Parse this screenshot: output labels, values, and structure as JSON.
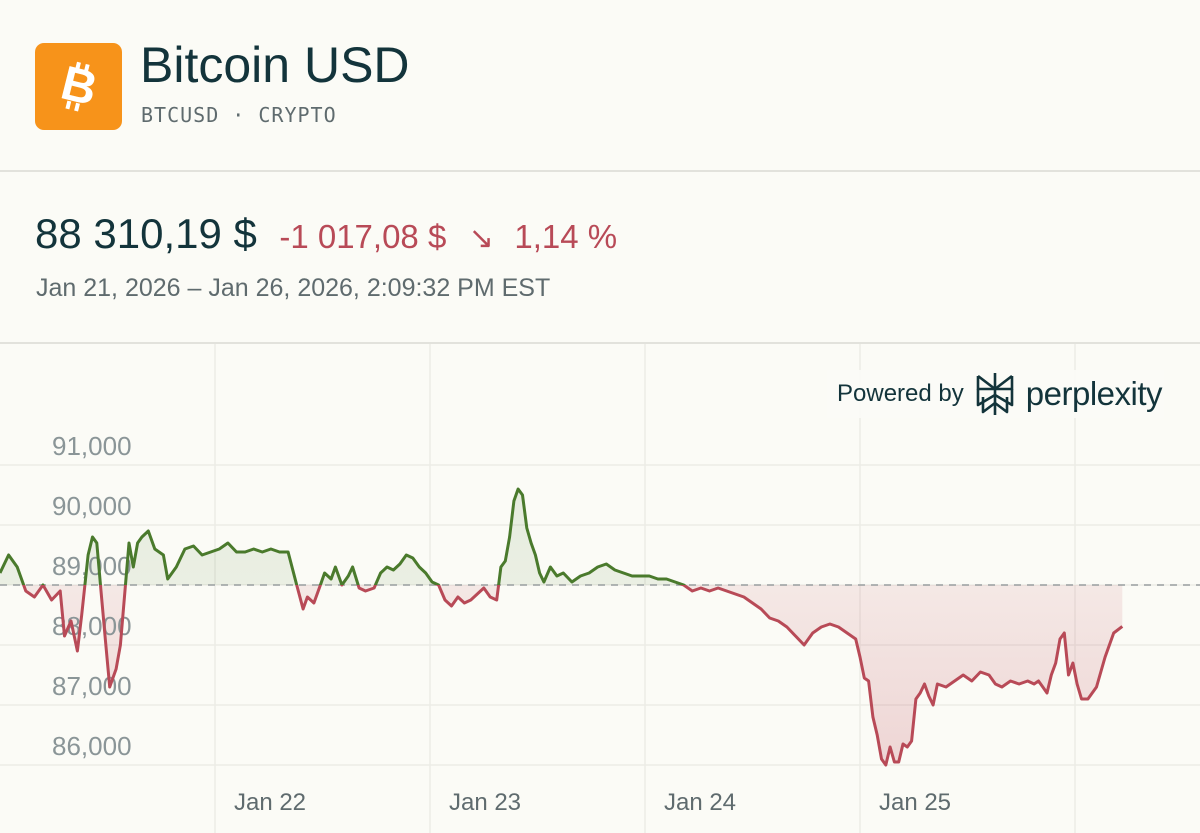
{
  "header": {
    "title": "Bitcoin USD",
    "subtitle": "BTCUSD · CRYPTO",
    "logo_icon": "bitcoin-icon",
    "logo_color": "#f7931a"
  },
  "quote": {
    "price": "88 310,19 $",
    "change": "-1 017,08 $",
    "change_percent": "1,14 %",
    "direction_icon": "arrow-down-right-icon",
    "range": "Jan 21, 2026 – Jan 26, 2026, 2:09:32 PM EST",
    "negative_color": "#b84a57",
    "positive_color": "#4a7a2c"
  },
  "attribution": {
    "label": "Powered by",
    "brand": "perplexity",
    "icon": "perplexity-logo-icon"
  },
  "chart_data": {
    "type": "line",
    "title": "Bitcoin USD",
    "ylabel": "",
    "xlabel": "",
    "y_ticks": [
      86000,
      87000,
      88000,
      89000,
      90000,
      91000
    ],
    "y_tick_labels": [
      "86,000",
      "87,000",
      "88,000",
      "89,000",
      "90,000",
      "91,000"
    ],
    "x_ticks": [
      1,
      2,
      3,
      4
    ],
    "x_tick_labels": [
      "Jan 22",
      "Jan 23",
      "Jan 24",
      "Jan 25"
    ],
    "ylim": [
      85300,
      91400
    ],
    "xlim": [
      0,
      5.45
    ],
    "reference": 89000,
    "grid": true,
    "series": [
      {
        "name": "BTCUSD",
        "points": [
          [
            0.0,
            89200
          ],
          [
            0.04,
            89500
          ],
          [
            0.08,
            89300
          ],
          [
            0.12,
            88900
          ],
          [
            0.16,
            88800
          ],
          [
            0.2,
            89000
          ],
          [
            0.24,
            88750
          ],
          [
            0.28,
            88900
          ],
          [
            0.3,
            88150
          ],
          [
            0.33,
            88400
          ],
          [
            0.36,
            87900
          ],
          [
            0.38,
            88500
          ],
          [
            0.41,
            89500
          ],
          [
            0.43,
            89800
          ],
          [
            0.45,
            89700
          ],
          [
            0.47,
            88900
          ],
          [
            0.49,
            88100
          ],
          [
            0.51,
            87300
          ],
          [
            0.54,
            87600
          ],
          [
            0.56,
            88000
          ],
          [
            0.6,
            89700
          ],
          [
            0.62,
            89300
          ],
          [
            0.64,
            89700
          ],
          [
            0.66,
            89800
          ],
          [
            0.69,
            89900
          ],
          [
            0.72,
            89600
          ],
          [
            0.76,
            89500
          ],
          [
            0.78,
            89100
          ],
          [
            0.82,
            89300
          ],
          [
            0.86,
            89600
          ],
          [
            0.9,
            89650
          ],
          [
            0.94,
            89500
          ],
          [
            0.98,
            89550
          ],
          [
            1.02,
            89600
          ],
          [
            1.06,
            89700
          ],
          [
            1.1,
            89550
          ],
          [
            1.14,
            89550
          ],
          [
            1.18,
            89600
          ],
          [
            1.22,
            89550
          ],
          [
            1.26,
            89600
          ],
          [
            1.3,
            89550
          ],
          [
            1.34,
            89550
          ],
          [
            1.38,
            89000
          ],
          [
            1.41,
            88600
          ],
          [
            1.43,
            88800
          ],
          [
            1.46,
            88700
          ],
          [
            1.49,
            89000
          ],
          [
            1.51,
            89200
          ],
          [
            1.54,
            89100
          ],
          [
            1.56,
            89300
          ],
          [
            1.59,
            89000
          ],
          [
            1.62,
            89150
          ],
          [
            1.64,
            89300
          ],
          [
            1.67,
            88950
          ],
          [
            1.7,
            88900
          ],
          [
            1.74,
            88950
          ],
          [
            1.77,
            89200
          ],
          [
            1.8,
            89300
          ],
          [
            1.83,
            89250
          ],
          [
            1.86,
            89350
          ],
          [
            1.89,
            89500
          ],
          [
            1.92,
            89450
          ],
          [
            1.95,
            89300
          ],
          [
            1.98,
            89200
          ],
          [
            2.01,
            89050
          ],
          [
            2.04,
            89000
          ],
          [
            2.07,
            88750
          ],
          [
            2.1,
            88650
          ],
          [
            2.13,
            88800
          ],
          [
            2.16,
            88700
          ],
          [
            2.19,
            88750
          ],
          [
            2.22,
            88850
          ],
          [
            2.25,
            88950
          ],
          [
            2.28,
            88800
          ],
          [
            2.31,
            88750
          ],
          [
            2.33,
            89300
          ],
          [
            2.35,
            89400
          ],
          [
            2.37,
            89800
          ],
          [
            2.39,
            90400
          ],
          [
            2.41,
            90600
          ],
          [
            2.43,
            90500
          ],
          [
            2.45,
            89950
          ],
          [
            2.47,
            89700
          ],
          [
            2.49,
            89500
          ],
          [
            2.51,
            89200
          ],
          [
            2.53,
            89050
          ],
          [
            2.56,
            89300
          ],
          [
            2.59,
            89150
          ],
          [
            2.62,
            89200
          ],
          [
            2.66,
            89050
          ],
          [
            2.7,
            89150
          ],
          [
            2.74,
            89200
          ],
          [
            2.78,
            89300
          ],
          [
            2.82,
            89350
          ],
          [
            2.86,
            89250
          ],
          [
            2.9,
            89200
          ],
          [
            2.94,
            89150
          ],
          [
            2.98,
            89150
          ],
          [
            3.02,
            89150
          ],
          [
            3.06,
            89100
          ],
          [
            3.1,
            89100
          ],
          [
            3.14,
            89050
          ],
          [
            3.18,
            89000
          ],
          [
            3.22,
            88900
          ],
          [
            3.26,
            88950
          ],
          [
            3.3,
            88900
          ],
          [
            3.34,
            88950
          ],
          [
            3.38,
            88900
          ],
          [
            3.42,
            88850
          ],
          [
            3.46,
            88800
          ],
          [
            3.5,
            88700
          ],
          [
            3.54,
            88600
          ],
          [
            3.58,
            88450
          ],
          [
            3.62,
            88400
          ],
          [
            3.66,
            88300
          ],
          [
            3.7,
            88150
          ],
          [
            3.74,
            88000
          ],
          [
            3.78,
            88200
          ],
          [
            3.82,
            88300
          ],
          [
            3.86,
            88350
          ],
          [
            3.9,
            88300
          ],
          [
            3.94,
            88200
          ],
          [
            3.98,
            88100
          ],
          [
            4.0,
            87800
          ],
          [
            4.02,
            87450
          ],
          [
            4.04,
            87400
          ],
          [
            4.06,
            86800
          ],
          [
            4.08,
            86500
          ],
          [
            4.1,
            86100
          ],
          [
            4.12,
            86000
          ],
          [
            4.14,
            86300
          ],
          [
            4.16,
            86050
          ],
          [
            4.18,
            86050
          ],
          [
            4.2,
            86350
          ],
          [
            4.22,
            86300
          ],
          [
            4.24,
            86400
          ],
          [
            4.26,
            87100
          ],
          [
            4.28,
            87200
          ],
          [
            4.3,
            87350
          ],
          [
            4.32,
            87150
          ],
          [
            4.34,
            87000
          ],
          [
            4.36,
            87350
          ],
          [
            4.4,
            87300
          ],
          [
            4.44,
            87400
          ],
          [
            4.48,
            87500
          ],
          [
            4.52,
            87400
          ],
          [
            4.56,
            87550
          ],
          [
            4.6,
            87500
          ],
          [
            4.63,
            87350
          ],
          [
            4.66,
            87300
          ],
          [
            4.7,
            87400
          ],
          [
            4.74,
            87350
          ],
          [
            4.78,
            87400
          ],
          [
            4.81,
            87350
          ],
          [
            4.83,
            87400
          ],
          [
            4.85,
            87300
          ],
          [
            4.87,
            87200
          ],
          [
            4.89,
            87500
          ],
          [
            4.91,
            87700
          ],
          [
            4.93,
            88100
          ],
          [
            4.95,
            88200
          ],
          [
            4.97,
            87500
          ],
          [
            4.99,
            87700
          ],
          [
            5.01,
            87350
          ],
          [
            5.03,
            87100
          ],
          [
            5.06,
            87100
          ],
          [
            5.1,
            87300
          ],
          [
            5.14,
            87800
          ],
          [
            5.18,
            88200
          ],
          [
            5.22,
            88310
          ]
        ]
      }
    ]
  }
}
